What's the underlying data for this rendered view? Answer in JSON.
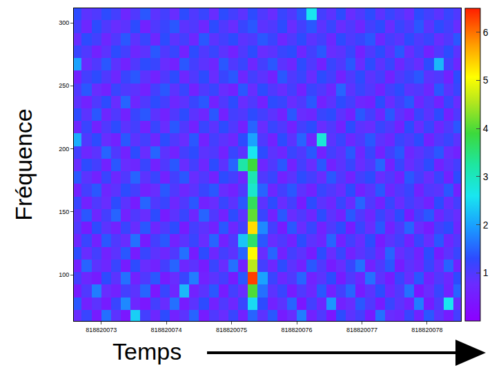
{
  "chart_data": {
    "type": "heatmap",
    "x_label": "Temps",
    "y_label": "Fréquence",
    "x": [
      818820072.625,
      818820072.775,
      818820072.925,
      818820073.075,
      818820073.225,
      818820073.375,
      818820073.525,
      818820073.675,
      818820073.825,
      818820073.975,
      818820074.125,
      818820074.275,
      818820074.425,
      818820074.575,
      818820074.725,
      818820074.875,
      818820075.025,
      818820075.175,
      818820075.325,
      818820075.475,
      818820075.625,
      818820075.775,
      818820075.925,
      818820076.075,
      818820076.225,
      818820076.375,
      818820076.525,
      818820076.675,
      818820076.825,
      818820076.975,
      818820077.125,
      818820077.275,
      818820077.425,
      818820077.575,
      818820077.725,
      818820077.875,
      818820078.025,
      818820078.175,
      818820078.325,
      818820078.475
    ],
    "y": [
      67,
      77,
      87,
      97,
      107,
      117,
      127,
      137,
      147,
      157,
      167,
      177,
      187,
      197,
      207,
      217,
      227,
      237,
      247,
      257,
      267,
      277,
      287,
      297,
      307
    ],
    "z": [
      [
        0.8,
        1.2,
        0.5,
        1.6,
        0.9,
        0.4,
        2.4,
        1.1,
        0.7,
        1.3,
        0.6,
        0.9,
        1.5,
        0.5,
        1.0,
        0.8,
        1.2,
        0.6,
        1.5,
        0.9,
        1.4,
        0.5,
        0.8,
        1.7,
        0.6,
        1.0,
        0.4,
        1.3,
        0.9,
        1.1,
        0.5,
        1.6,
        0.8,
        0.7,
        1.2,
        0.6,
        1.4,
        0.9,
        0.5,
        1.1
      ],
      [
        1.4,
        0.6,
        0.9,
        0.5,
        1.2,
        1.8,
        0.7,
        0.4,
        1.1,
        0.8,
        1.6,
        0.5,
        0.9,
        1.3,
        0.6,
        1.0,
        0.7,
        1.2,
        2.5,
        1.3,
        0.6,
        0.9,
        1.5,
        0.4,
        1.1,
        0.7,
        1.9,
        0.6,
        0.8,
        1.4,
        1.0,
        0.5,
        1.2,
        0.9,
        0.6,
        1.7,
        0.5,
        1.0,
        2.6,
        0.8
      ],
      [
        0.5,
        1.0,
        1.7,
        0.8,
        0.6,
        1.1,
        0.9,
        1.5,
        0.4,
        1.2,
        0.7,
        2.2,
        0.6,
        0.9,
        1.4,
        0.5,
        1.1,
        0.8,
        4.0,
        1.6,
        0.9,
        1.2,
        0.5,
        1.0,
        0.7,
        1.4,
        0.6,
        1.1,
        1.5,
        0.5,
        0.9,
        1.3,
        0.7,
        1.0,
        1.6,
        0.4,
        0.8,
        1.2,
        0.6,
        1.5
      ],
      [
        1.1,
        0.7,
        0.5,
        1.3,
        0.9,
        1.6,
        0.6,
        1.0,
        1.4,
        0.5,
        0.8,
        1.2,
        1.7,
        0.6,
        0.9,
        1.1,
        0.5,
        1.4,
        6.3,
        2.0,
        1.2,
        0.7,
        1.0,
        1.5,
        0.6,
        0.9,
        1.3,
        0.5,
        1.0,
        0.7,
        1.6,
        0.9,
        0.5,
        1.2,
        0.8,
        1.4,
        0.6,
        1.0,
        0.7,
        1.3
      ],
      [
        0.6,
        1.5,
        0.9,
        0.7,
        1.2,
        0.5,
        1.3,
        0.8,
        0.6,
        1.1,
        1.5,
        0.7,
        0.9,
        0.5,
        1.2,
        0.8,
        1.6,
        0.6,
        4.6,
        1.1,
        0.7,
        1.3,
        0.9,
        0.6,
        1.4,
        1.0,
        0.5,
        0.8,
        1.2,
        1.6,
        0.6,
        1.0,
        1.4,
        0.5,
        0.9,
        0.7,
        1.2,
        0.8,
        1.5,
        0.6
      ],
      [
        1.3,
        0.8,
        1.1,
        0.6,
        0.9,
        1.4,
        0.5,
        1.2,
        0.9,
        0.7,
        1.0,
        1.6,
        0.5,
        1.3,
        0.7,
        1.1,
        0.9,
        1.5,
        5.1,
        0.8,
        1.5,
        0.6,
        1.1,
        0.9,
        0.5,
        1.3,
        0.8,
        1.2,
        0.6,
        0.9,
        1.1,
        0.7,
        1.5,
        0.8,
        1.0,
        0.6,
        1.3,
        0.5,
        0.9,
        1.2
      ],
      [
        0.7,
        1.2,
        0.6,
        1.4,
        1.0,
        0.8,
        1.6,
        0.5,
        1.1,
        1.4,
        0.6,
        0.9,
        1.2,
        0.8,
        1.5,
        0.6,
        1.0,
        2.3,
        3.6,
        1.4,
        0.8,
        1.0,
        0.6,
        1.3,
        0.9,
        0.7,
        1.5,
        0.6,
        1.1,
        0.8,
        1.3,
        0.5,
        0.9,
        1.1,
        0.6,
        1.2,
        0.8,
        1.4,
        0.7,
        1.0
      ],
      [
        1.0,
        0.5,
        1.3,
        0.9,
        0.6,
        1.2,
        0.8,
        1.4,
        0.7,
        1.0,
        1.3,
        0.5,
        1.1,
        0.9,
        0.6,
        1.4,
        0.7,
        1.1,
        5.3,
        1.8,
        1.1,
        0.5,
        1.4,
        0.8,
        1.2,
        0.6,
        1.0,
        1.3,
        0.5,
        1.2,
        0.8,
        1.4,
        0.6,
        1.0,
        1.5,
        0.8,
        0.5,
        1.1,
        1.3,
        0.7
      ],
      [
        0.9,
        1.4,
        0.7,
        1.1,
        1.5,
        0.6,
        1.0,
        0.8,
        1.3,
        0.5,
        0.9,
        1.2,
        0.7,
        1.5,
        1.0,
        0.6,
        1.3,
        0.9,
        4.1,
        1.2,
        0.6,
        1.4,
        0.8,
        1.0,
        0.7,
        1.3,
        0.9,
        0.6,
        1.4,
        1.0,
        0.7,
        1.2,
        0.9,
        1.3,
        0.5,
        1.1,
        1.4,
        0.7,
        1.0,
        0.8
      ],
      [
        1.2,
        0.6,
        1.0,
        0.8,
        1.3,
        0.9,
        0.5,
        1.5,
        1.0,
        1.2,
        0.7,
        1.0,
        1.4,
        0.6,
        0.8,
        1.2,
        0.9,
        1.4,
        3.7,
        0.9,
        1.3,
        0.8,
        1.1,
        0.5,
        1.3,
        0.9,
        0.7,
        1.2,
        0.8,
        1.5,
        1.0,
        0.6,
        1.2,
        0.8,
        1.1,
        0.9,
        0.6,
        1.3,
        0.8,
        1.1
      ],
      [
        0.6,
        1.1,
        1.4,
        0.7,
        0.9,
        1.3,
        1.1,
        0.6,
        0.8,
        1.4,
        1.0,
        0.7,
        0.9,
        1.2,
        1.4,
        0.8,
        0.6,
        1.0,
        2.9,
        1.5,
        0.7,
        1.1,
        1.4,
        0.9,
        0.6,
        1.2,
        1.0,
        0.8,
        1.3,
        0.6,
        0.9,
        1.4,
        0.7,
        1.0,
        1.2,
        0.6,
        1.0,
        0.9,
        1.4,
        0.6
      ],
      [
        1.4,
        0.9,
        0.6,
        1.2,
        0.7,
        1.0,
        1.5,
        0.9,
        1.2,
        0.6,
        1.1,
        1.4,
        0.8,
        1.0,
        0.6,
        1.3,
        1.1,
        0.7,
        3.1,
        1.0,
        1.2,
        0.6,
        0.9,
        1.3,
        1.1,
        0.8,
        1.4,
        1.0,
        0.6,
        1.1,
        1.3,
        0.8,
        1.0,
        0.6,
        1.4,
        1.1,
        0.8,
        1.2,
        0.6,
        1.3
      ],
      [
        0.8,
        1.3,
        1.1,
        0.6,
        1.4,
        0.8,
        0.7,
        1.2,
        0.6,
        1.0,
        1.4,
        0.8,
        1.1,
        0.7,
        1.3,
        0.9,
        1.5,
        3.2,
        3.9,
        0.7,
        1.0,
        1.4,
        0.6,
        1.1,
        0.8,
        1.4,
        0.6,
        0.9,
        1.2,
        0.8,
        1.0,
        1.5,
        0.6,
        1.2,
        0.8,
        1.0,
        1.3,
        0.6,
        0.9,
        1.1
      ],
      [
        1.1,
        0.7,
        0.9,
        1.5,
        1.0,
        0.6,
        1.3,
        0.8,
        1.5,
        0.9,
        0.6,
        1.1,
        1.3,
        0.9,
        1.0,
        0.6,
        1.2,
        0.9,
        2.6,
        1.3,
        0.9,
        0.7,
        1.2,
        1.0,
        1.4,
        0.6,
        1.1,
        0.9,
        1.4,
        0.7,
        1.2,
        0.6,
        1.1,
        1.4,
        0.7,
        0.9,
        1.1,
        1.4,
        0.8,
        0.6
      ],
      [
        2.1,
        1.0,
        1.3,
        0.8,
        0.6,
        1.4,
        0.9,
        1.1,
        0.7,
        1.3,
        1.0,
        0.8,
        1.4,
        0.6,
        1.1,
        0.9,
        0.7,
        1.3,
        2.0,
        1.0,
        0.6,
        1.3,
        0.9,
        1.5,
        0.7,
        2.8,
        0.9,
        1.2,
        0.7,
        1.0,
        1.4,
        0.9,
        0.7,
        1.2,
        1.0,
        1.3,
        0.6,
        1.0,
        1.2,
        0.9
      ],
      [
        0.7,
        1.2,
        0.6,
        1.0,
        1.3,
        0.9,
        1.1,
        0.6,
        1.2,
        0.8,
        1.4,
        1.0,
        0.6,
        1.2,
        0.9,
        1.3,
        1.0,
        0.6,
        1.5,
        0.8,
        1.2,
        1.0,
        0.6,
        1.1,
        1.3,
        0.8,
        1.0,
        0.6,
        1.3,
        0.9,
        0.8,
        1.2,
        1.0,
        0.6,
        1.3,
        0.8,
        1.2,
        0.7,
        1.0,
        1.4
      ],
      [
        1.3,
        0.9,
        1.4,
        0.7,
        1.0,
        0.6,
        1.2,
        1.4,
        0.9,
        0.6,
        1.0,
        1.3,
        0.9,
        0.7,
        1.4,
        0.6,
        1.1,
        1.0,
        1.3,
        1.1,
        0.9,
        0.6,
        1.4,
        0.8,
        0.7,
        1.2,
        1.3,
        0.9,
        0.6,
        1.4,
        1.1,
        0.7,
        1.4,
        0.9,
        0.6,
        1.2,
        0.9,
        1.3,
        0.6,
        1.0
      ],
      [
        0.9,
        0.6,
        1.0,
        1.3,
        0.8,
        1.5,
        0.7,
        1.0,
        1.3,
        1.1,
        0.7,
        0.9,
        1.2,
        1.4,
        0.6,
        1.0,
        1.3,
        0.8,
        1.0,
        0.6,
        1.3,
        1.2,
        0.8,
        1.0,
        1.4,
        0.6,
        0.9,
        1.3,
        1.1,
        0.7,
        0.6,
        1.3,
        0.8,
        1.1,
        1.4,
        0.7,
        1.0,
        0.6,
        1.2,
        0.8
      ],
      [
        1.0,
        1.4,
        0.8,
        0.6,
        1.2,
        1.0,
        0.9,
        0.6,
        1.1,
        1.4,
        0.9,
        1.2,
        0.6,
        1.0,
        1.2,
        0.8,
        0.6,
        1.4,
        0.8,
        1.3,
        1.0,
        0.8,
        1.1,
        0.6,
        1.2,
        1.0,
        0.7,
        1.5,
        0.9,
        1.2,
        1.0,
        0.6,
        1.1,
        1.3,
        0.9,
        1.0,
        0.7,
        1.4,
        0.9,
        1.2
      ],
      [
        0.6,
        1.1,
        1.3,
        1.0,
        0.7,
        1.2,
        1.4,
        0.9,
        0.6,
        1.0,
        1.3,
        0.7,
        1.0,
        1.3,
        0.8,
        1.2,
        1.4,
        0.7,
        1.1,
        0.9,
        0.6,
        1.4,
        1.0,
        1.2,
        0.8,
        1.3,
        1.1,
        0.6,
        1.0,
        1.3,
        0.9,
        1.1,
        0.6,
        1.0,
        1.2,
        1.4,
        0.9,
        1.0,
        0.6,
        1.3
      ],
      [
        2.0,
        0.8,
        1.0,
        1.4,
        0.9,
        0.6,
        1.0,
        1.3,
        1.2,
        0.8,
        0.6,
        1.4,
        1.1,
        0.9,
        0.7,
        1.4,
        1.0,
        1.2,
        0.7,
        1.1,
        1.4,
        0.9,
        0.7,
        1.3,
        1.0,
        0.6,
        1.2,
        1.0,
        1.4,
        0.8,
        1.3,
        0.9,
        1.2,
        0.7,
        1.0,
        0.8,
        1.3,
        2.2,
        1.1,
        0.7
      ],
      [
        1.2,
        1.0,
        0.6,
        0.9,
        1.3,
        1.1,
        0.7,
        0.9,
        1.4,
        1.0,
        1.2,
        0.6,
        1.3,
        1.0,
        1.2,
        0.9,
        0.6,
        1.0,
        1.3,
        0.8,
        0.9,
        1.2,
        1.3,
        0.7,
        1.1,
        1.4,
        0.8,
        0.9,
        1.2,
        0.6,
        1.0,
        1.3,
        0.9,
        1.4,
        0.8,
        1.1,
        0.6,
        1.0,
        1.3,
        0.9
      ],
      [
        0.8,
        1.3,
        1.1,
        0.7,
        1.0,
        1.4,
        0.9,
        1.2,
        0.7,
        1.3,
        0.9,
        1.1,
        0.7,
        1.4,
        0.9,
        1.1,
        1.3,
        0.9,
        1.0,
        1.4,
        1.2,
        0.7,
        1.0,
        1.3,
        0.9,
        1.1,
        0.7,
        1.3,
        1.0,
        1.2,
        1.4,
        0.7,
        1.1,
        0.9,
        1.3,
        1.0,
        1.2,
        0.8,
        1.0,
        1.4
      ],
      [
        1.1,
        0.7,
        1.3,
        1.0,
        0.8,
        0.9,
        1.3,
        0.6,
        1.0,
        1.2,
        1.4,
        0.9,
        1.0,
        0.7,
        1.3,
        1.0,
        0.8,
        1.2,
        1.4,
        0.9,
        1.0,
        1.3,
        0.8,
        1.1,
        1.4,
        0.9,
        1.2,
        0.8,
        1.0,
        0.7,
        1.1,
        1.3,
        0.8,
        1.2,
        1.0,
        1.4,
        0.9,
        1.3,
        1.1,
        0.8
      ],
      [
        1.3,
        0.9,
        1.0,
        1.3,
        1.1,
        0.7,
        1.0,
        1.4,
        0.9,
        1.1,
        0.8,
        1.3,
        1.0,
        1.2,
        0.8,
        1.3,
        1.1,
        0.9,
        1.3,
        1.0,
        0.8,
        1.2,
        1.0,
        1.4,
        2.6,
        1.1,
        0.9,
        1.3,
        0.8,
        1.0,
        1.3,
        0.9,
        1.2,
        1.0,
        0.8,
        1.3,
        1.1,
        0.9,
        1.2,
        1.0
      ]
    ],
    "xlim": [
      818820072.58,
      818820078.52
    ],
    "ylim": [
      63.4,
      311.5
    ],
    "xticks": [
      818820073,
      818820074,
      818820075,
      818820076,
      818820077,
      818820078
    ],
    "yticks": [
      100,
      150,
      200,
      250,
      300
    ],
    "zlim": [
      0,
      6.5
    ],
    "zticks": [
      1,
      2,
      3,
      4,
      5,
      6
    ],
    "grid": true
  }
}
